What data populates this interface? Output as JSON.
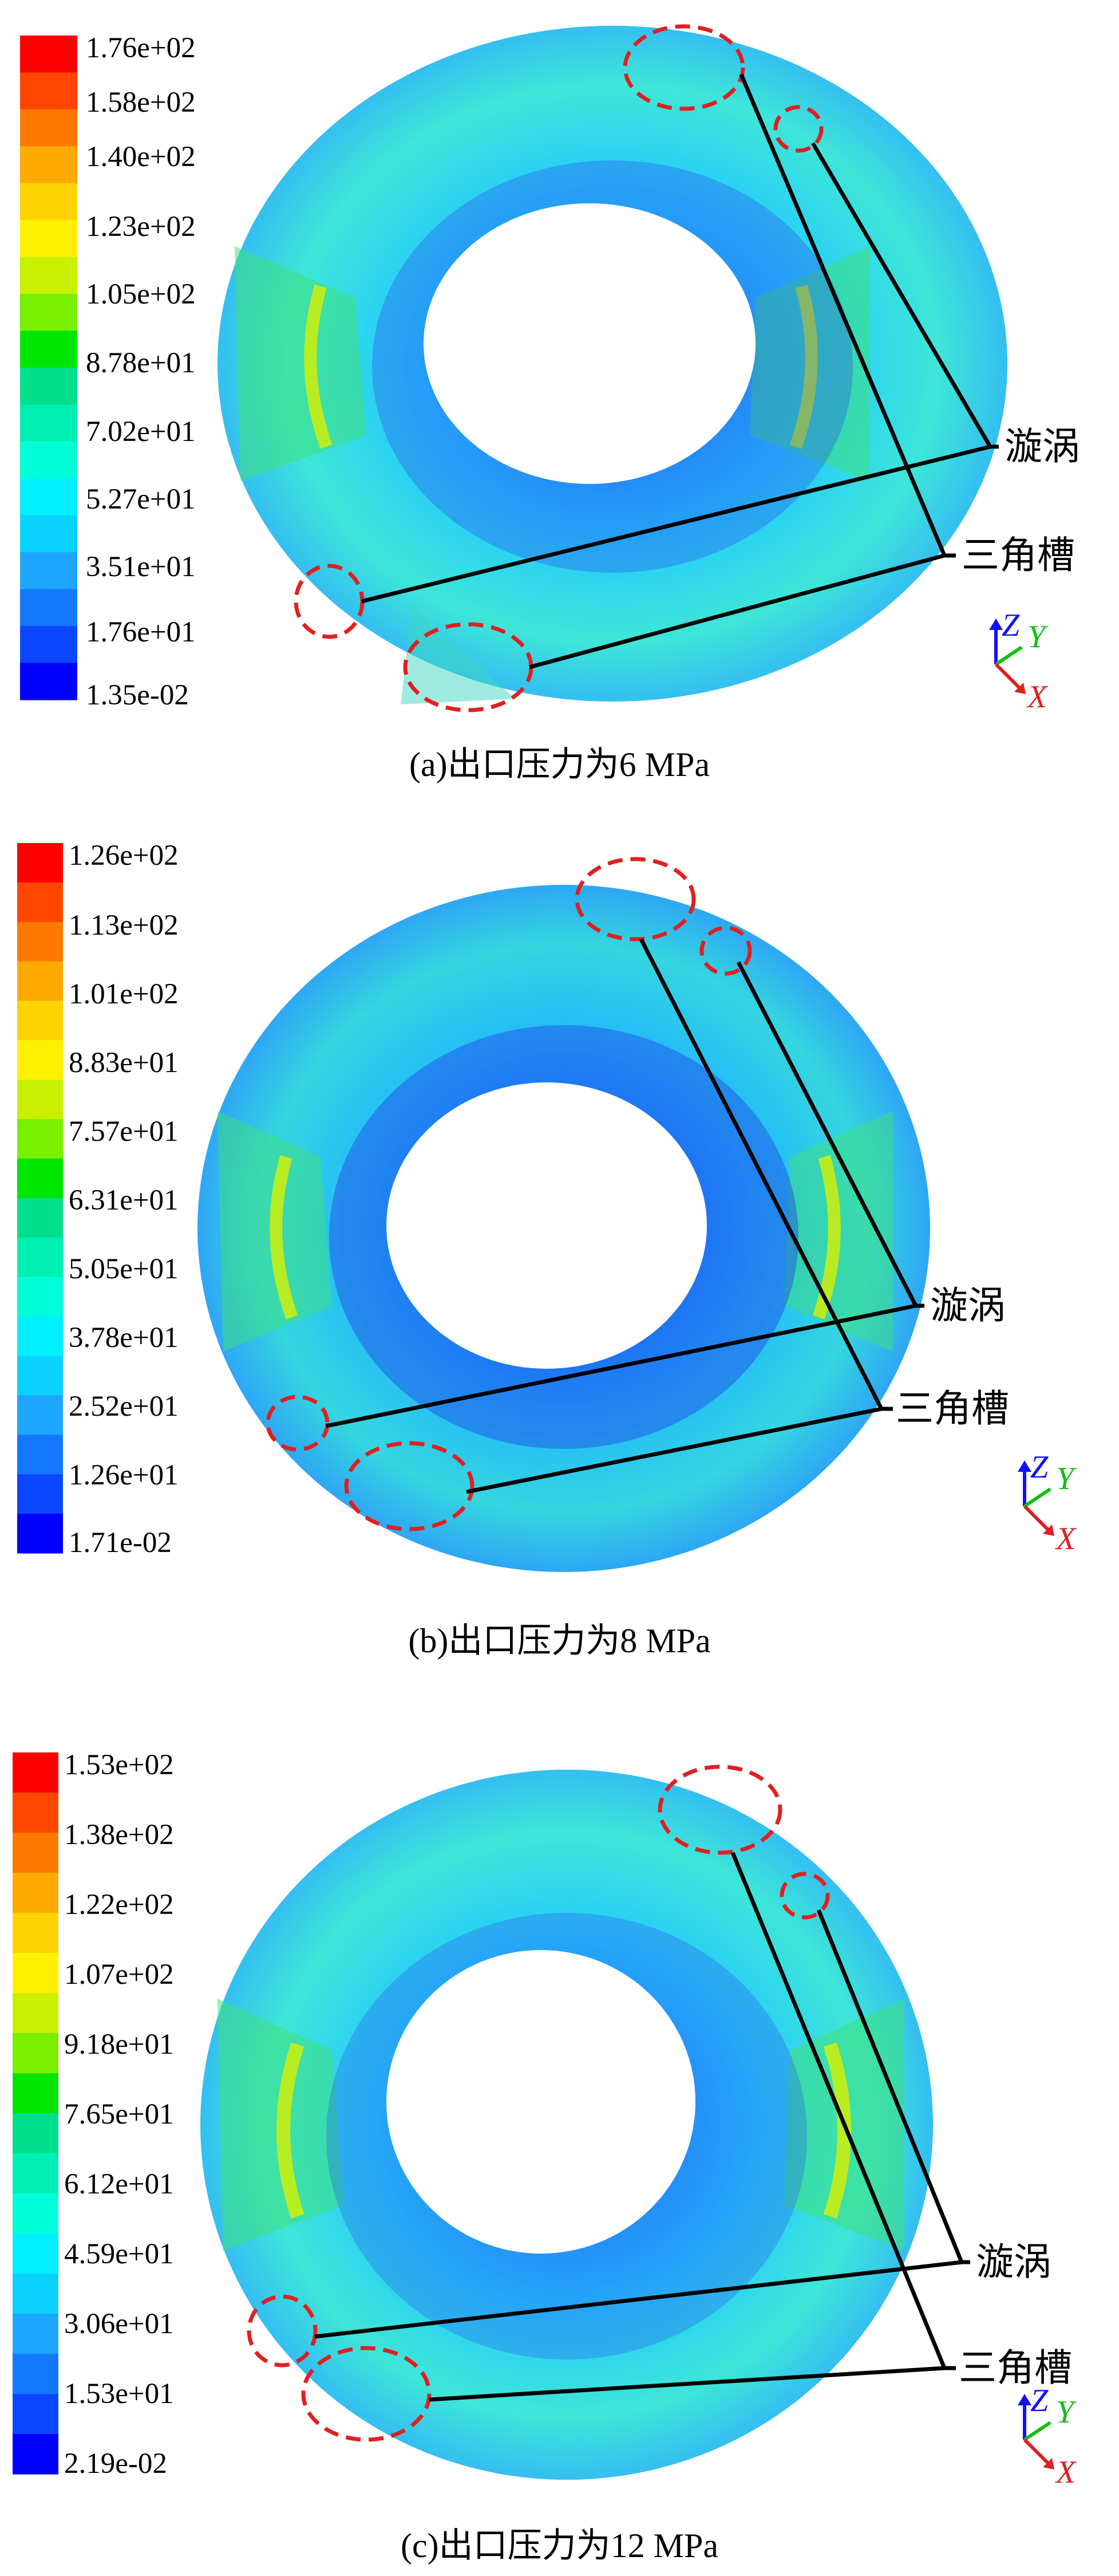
{
  "colorbar_colors": [
    "#0000ff",
    "#0a46ff",
    "#1478ff",
    "#1ea6ff",
    "#0ad2ff",
    "#00f0ff",
    "#00ffd8",
    "#00f0b4",
    "#00e08c",
    "#00e600",
    "#78f000",
    "#c8f000",
    "#fff000",
    "#ffd200",
    "#ffaa00",
    "#ff7800",
    "#ff4600",
    "#ff0000"
  ],
  "annotations": {
    "vortex": "漩涡",
    "triangle_groove": "三角槽"
  },
  "axis_triad": {
    "z": "Z",
    "y": "Y",
    "x": "X"
  },
  "panels": [
    {
      "caption": "(a)出口压力为6 MPa",
      "colorbar_labels": [
        "1.76e+02",
        "1.58e+02",
        "1.40e+02",
        "1.23e+02",
        "1.05e+02",
        "8.78e+01",
        "7.02e+01",
        "5.27e+01",
        "3.51e+01",
        "1.76e+01",
        "1.35e-02"
      ]
    },
    {
      "caption": "(b)出口压力为8 MPa",
      "colorbar_labels": [
        "1.26e+02",
        "1.13e+02",
        "1.01e+02",
        "8.83e+01",
        "7.57e+01",
        "6.31e+01",
        "5.05e+01",
        "3.78e+01",
        "2.52e+01",
        "1.26e+01",
        "1.71e-02"
      ]
    },
    {
      "caption": "(c)出口压力为12 MPa",
      "colorbar_labels": [
        "1.53e+02",
        "1.38e+02",
        "1.22e+02",
        "1.07e+02",
        "9.18e+01",
        "7.65e+01",
        "6.12e+01",
        "4.59e+01",
        "3.06e+01",
        "1.53e+01",
        "2.19e-02"
      ]
    }
  ]
}
